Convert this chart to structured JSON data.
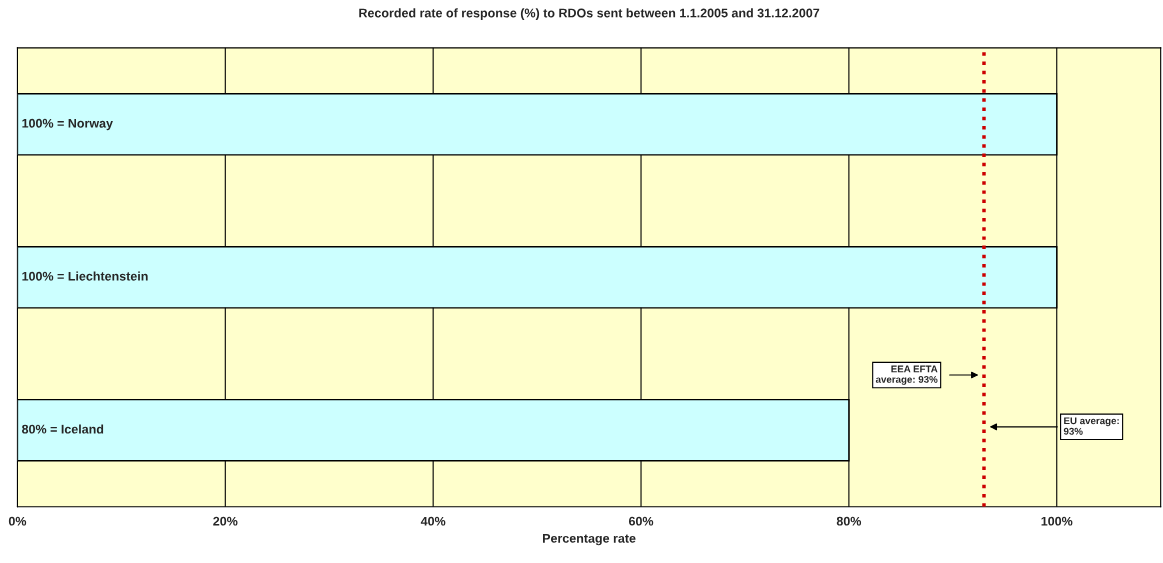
{
  "chart_data": {
    "type": "bar",
    "orientation": "horizontal",
    "title": "Recorded rate of response (%) to RDOs sent between 1.1.2005 and 31.12.2007",
    "xlabel": "Percentage rate",
    "categories": [
      null,
      null,
      null
    ],
    "values": [
      100,
      100,
      80
    ],
    "value_labels": [
      "100% = Norway",
      "100% = Liechtenstein",
      "80% = Iceland"
    ],
    "color": "#ccffff",
    "xlim": [
      0,
      110
    ],
    "xticks": [
      {
        "value": 0,
        "label": "0%"
      },
      {
        "value": 20,
        "label": "20%"
      },
      {
        "value": 40,
        "label": "40%"
      },
      {
        "value": 60,
        "label": "60%"
      },
      {
        "value": 80,
        "label": "80%"
      },
      {
        "value": 100,
        "label": "100%"
      }
    ],
    "grid": "x",
    "ref_lines": [
      {
        "axis": "x",
        "value": 93,
        "color": "#cc0000",
        "line_style": "dotted"
      }
    ],
    "annotations": [
      "EEA EFTA\naverage: 93%",
      "EU average:\n93%"
    ]
  }
}
